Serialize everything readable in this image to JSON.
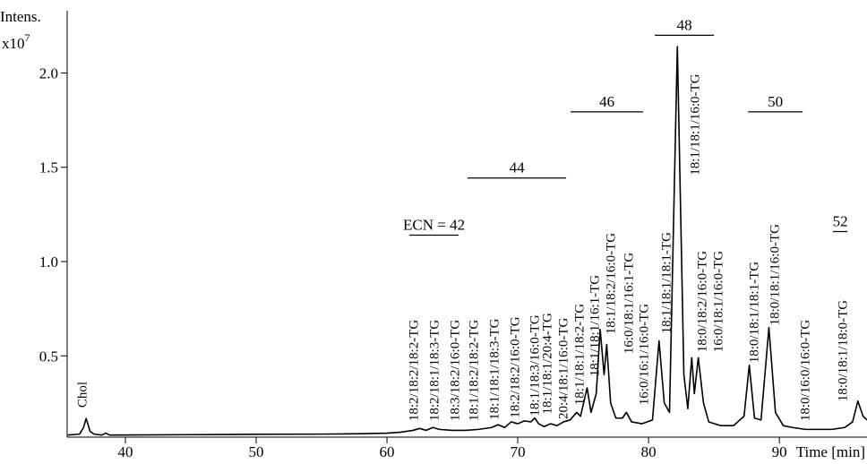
{
  "chart_data": {
    "type": "line",
    "y_label": "Intens.",
    "y_scale": {
      "base": "x10",
      "exponent": "7"
    },
    "x_label": "Time [min]",
    "color": "#000000",
    "xlim": [
      35.55,
      96.7
    ],
    "ylim": [
      0.069,
      2.33
    ],
    "xticks": [
      40,
      50,
      60,
      70,
      80,
      90
    ],
    "yticks": [
      0.5,
      {
        "value": 1,
        "label": "1.0"
      },
      1.5,
      {
        "value": 2,
        "label": "2.0"
      }
    ],
    "x": [
      35.6,
      36.5,
      36.8,
      37.0,
      37.3,
      37.6,
      38.2,
      38.5,
      38.8,
      45,
      50,
      55,
      58,
      60,
      61,
      62,
      62.5,
      63,
      63.5,
      64,
      65,
      66,
      67,
      68,
      68.5,
      69,
      69.5,
      70,
      70.5,
      71,
      71.3,
      71.6,
      72,
      72.5,
      73,
      73.5,
      74,
      74.5,
      74.8,
      75.3,
      75.6,
      76.0,
      76.3,
      76.6,
      76.8,
      77.1,
      77.5,
      78.0,
      78.3,
      78.7,
      79.5,
      80.3,
      80.8,
      81.2,
      81.6,
      82.2,
      82.7,
      83.0,
      83.3,
      83.5,
      83.8,
      84.2,
      84.6,
      85.5,
      86.5,
      87.3,
      87.7,
      88.1,
      88.6,
      89.2,
      89.7,
      90.3,
      91,
      92,
      93,
      94,
      95,
      95.6,
      96.0,
      96.4,
      96.7
    ],
    "values": [
      0.08,
      0.085,
      0.12,
      0.168,
      0.1,
      0.085,
      0.08,
      0.09,
      0.08,
      0.082,
      0.084,
      0.085,
      0.087,
      0.09,
      0.095,
      0.105,
      0.115,
      0.105,
      0.12,
      0.11,
      0.105,
      0.105,
      0.11,
      0.12,
      0.135,
      0.12,
      0.15,
      0.14,
      0.155,
      0.15,
      0.17,
      0.14,
      0.125,
      0.14,
      0.13,
      0.15,
      0.16,
      0.2,
      0.18,
      0.33,
      0.2,
      0.3,
      0.64,
      0.4,
      0.56,
      0.25,
      0.17,
      0.17,
      0.2,
      0.15,
      0.14,
      0.16,
      0.58,
      0.25,
      0.2,
      2.14,
      0.4,
      0.22,
      0.49,
      0.3,
      0.49,
      0.25,
      0.15,
      0.13,
      0.13,
      0.18,
      0.45,
      0.17,
      0.16,
      0.65,
      0.2,
      0.13,
      0.12,
      0.11,
      0.11,
      0.11,
      0.12,
      0.15,
      0.26,
      0.18,
      0.16
    ],
    "annotations": [
      {
        "text": "Chol",
        "x": 36.78,
        "y": 0.225
      },
      {
        "text": "18:2/18:2/18:2-TG",
        "x": 62.12,
        "y": 0.154
      },
      {
        "text": "18:2/18:1/18:3-TG",
        "x": 63.7,
        "y": 0.154
      },
      {
        "text": "18:3/18:2/16:0-TG",
        "x": 65.27,
        "y": 0.154
      },
      {
        "text": "18:1/18:2/18:2-TG",
        "x": 66.71,
        "y": 0.154
      },
      {
        "text": "18:1/18:1/18:3-TG",
        "x": 68.29,
        "y": 0.16
      },
      {
        "text": "18:2/18:2/16:0-TG",
        "x": 69.86,
        "y": 0.17
      },
      {
        "text": "18:1/18:3/16:0-TG",
        "x": 71.37,
        "y": 0.18
      },
      {
        "text": "18:1/18:1/20:4-TG",
        "x": 72.33,
        "y": 0.19
      },
      {
        "text": "20:4/18:1/16:0-TG",
        "x": 73.56,
        "y": 0.164
      },
      {
        "text": "18:1/18:1/18:2-TG",
        "x": 74.79,
        "y": 0.239
      },
      {
        "text": "18:1/18:1/16:1-TG",
        "x": 75.96,
        "y": 0.391
      },
      {
        "text": "18:1/18:2/16:0-TG",
        "x": 77.19,
        "y": 0.614
      },
      {
        "text": "16:0/18:1/16:1-TG",
        "x": 78.56,
        "y": 0.51
      },
      {
        "text": "16:0/16:1/16:0-TG",
        "x": 79.73,
        "y": 0.239
      },
      {
        "text": "18:1/18:1/18:1-TG",
        "x": 81.44,
        "y": 0.618
      },
      {
        "text": "18:1/18:1/16:0-TG",
        "x": 83.63,
        "y": 1.457
      },
      {
        "text": "18:0/18:2/16:0-TG",
        "x": 84.18,
        "y": 0.519
      },
      {
        "text": "16:0/18:1/16:0-TG",
        "x": 85.41,
        "y": 0.519
      },
      {
        "text": "18:0/18:1/18:1-TG",
        "x": 88.15,
        "y": 0.462
      },
      {
        "text": "18:0/18:1/16:0-TG",
        "x": 89.73,
        "y": 0.661
      },
      {
        "text": "18:0/16:0/16:0-TG",
        "x": 92.05,
        "y": 0.154
      },
      {
        "text": "18:0/18:1/18:0-TG",
        "x": 94.93,
        "y": 0.258
      }
    ],
    "groups": [
      {
        "label": "ECN = 42",
        "xmin": 61.71,
        "xmax": 65.48,
        "y": 1.14
      },
      {
        "label": "44",
        "xmin": 66.16,
        "xmax": 73.7,
        "y": 1.443
      },
      {
        "label": "46",
        "xmin": 74.04,
        "xmax": 79.59,
        "y": 1.794
      },
      {
        "label": "48",
        "xmin": 80.48,
        "xmax": 85.0,
        "y": 2.2
      },
      {
        "label": "50",
        "xmin": 87.6,
        "xmax": 91.78,
        "y": 1.794
      },
      {
        "label": "52",
        "xmin": 94.1,
        "xmax": 95.2,
        "y": 1.159
      }
    ]
  }
}
